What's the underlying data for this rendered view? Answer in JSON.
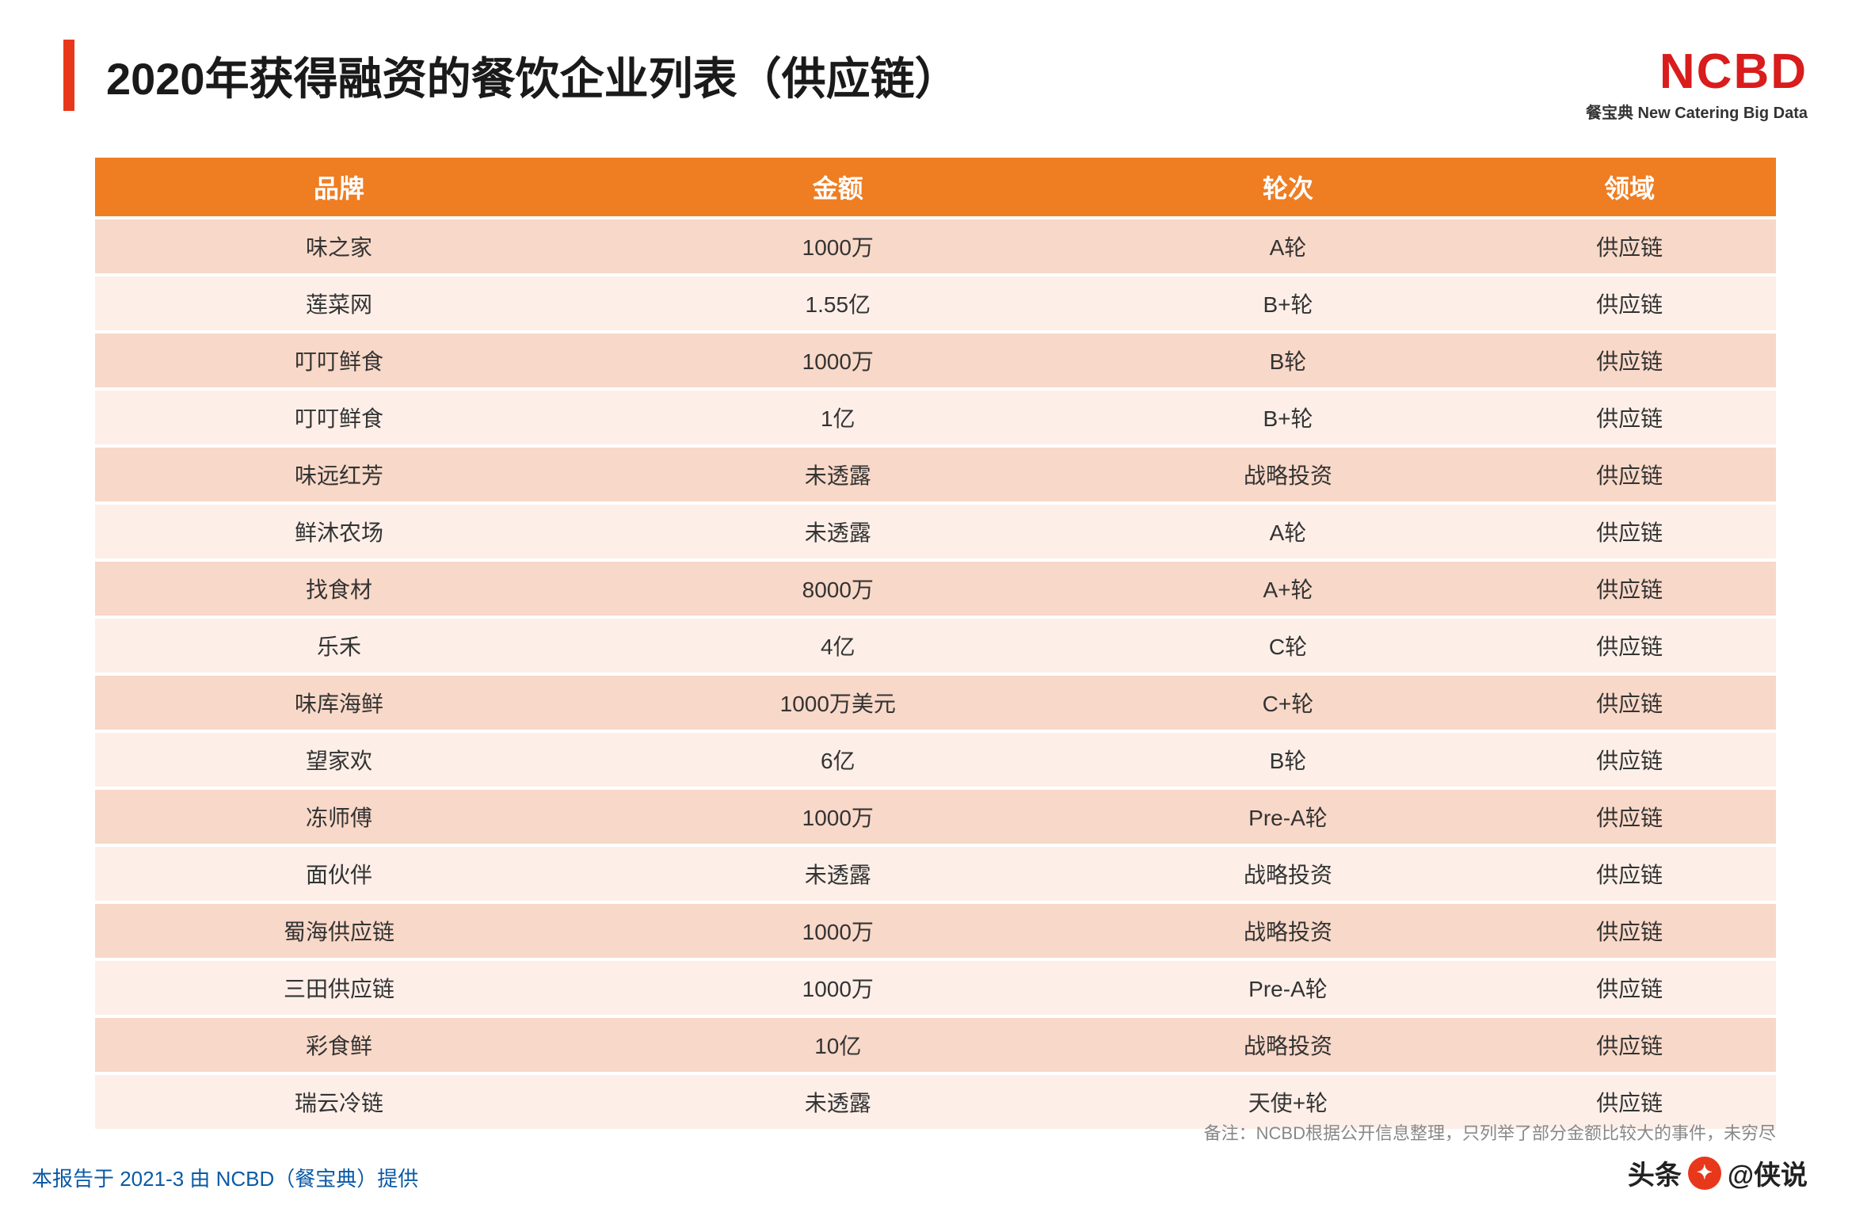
{
  "header": {
    "title": "2020年获得融资的餐饮企业列表（供应链）",
    "logo_main": "NCBD",
    "logo_sub": "餐宝典 New Catering Big Data"
  },
  "colors": {
    "accent": "#e8381b",
    "header_bg": "#ef7d22",
    "header_text": "#ffffff",
    "row_odd": "#f8d8c8",
    "row_even": "#fdefe8",
    "text": "#333333",
    "footer_note": "#888888",
    "footer_left": "#0b5aa6",
    "logo": "#d91c1c"
  },
  "table": {
    "columns": [
      "品牌",
      "金额",
      "轮次",
      "领域"
    ],
    "rows": [
      [
        "味之家",
        "1000万",
        "A轮",
        "供应链"
      ],
      [
        "莲菜网",
        "1.55亿",
        "B+轮",
        "供应链"
      ],
      [
        "叮叮鲜食",
        "1000万",
        "B轮",
        "供应链"
      ],
      [
        "叮叮鲜食",
        "1亿",
        "B+轮",
        "供应链"
      ],
      [
        "味远红芳",
        "未透露",
        "战略投资",
        "供应链"
      ],
      [
        "鲜沐农场",
        "未透露",
        "A轮",
        "供应链"
      ],
      [
        "找食材",
        "8000万",
        "A+轮",
        "供应链"
      ],
      [
        "乐禾",
        "4亿",
        "C轮",
        "供应链"
      ],
      [
        "味库海鲜",
        "1000万美元",
        "C+轮",
        "供应链"
      ],
      [
        "望家欢",
        "6亿",
        "B轮",
        "供应链"
      ],
      [
        "冻师傅",
        "1000万",
        "Pre-A轮",
        "供应链"
      ],
      [
        "面伙伴",
        "未透露",
        "战略投资",
        "供应链"
      ],
      [
        "蜀海供应链",
        "1000万",
        "战略投资",
        "供应链"
      ],
      [
        "三田供应链",
        "1000万",
        "Pre-A轮",
        "供应链"
      ],
      [
        "彩食鲜",
        "10亿",
        "战略投资",
        "供应链"
      ],
      [
        "瑞云冷链",
        "未透露",
        "天使+轮",
        "供应链"
      ]
    ]
  },
  "footer": {
    "note": "备注：NCBD根据公开信息整理，只列举了部分金额比较大的事件，未穷尽",
    "left": "本报告于 2021-3 由 NCBD（餐宝典）提供",
    "watermark_prefix": "头条",
    "watermark_suffix": "@侠说"
  }
}
